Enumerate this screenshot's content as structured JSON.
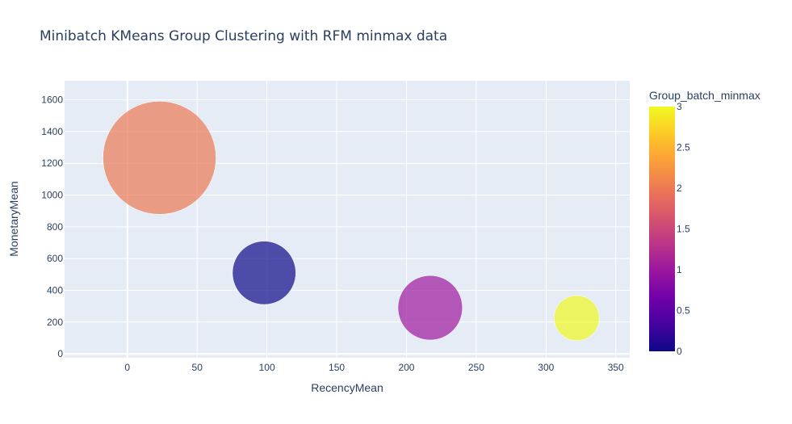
{
  "chart_data": {
    "type": "scatter",
    "title": "Minibatch KMeans Group Clustering with RFM minmax data",
    "xlabel": "RecencyMean",
    "ylabel": "MonetaryMean",
    "xlim": [
      -45,
      360
    ],
    "ylim": [
      -25,
      1720
    ],
    "x_ticks": [
      0,
      50,
      100,
      150,
      200,
      250,
      300,
      350
    ],
    "y_ticks": [
      0,
      200,
      400,
      600,
      800,
      1000,
      1200,
      1400,
      1600
    ],
    "grid": true,
    "background": "#e5ecf6",
    "points": [
      {
        "x": 23,
        "y": 1235,
        "group": 2,
        "size": 1.0,
        "color": "#ed7953"
      },
      {
        "x": 98,
        "y": 510,
        "group": 0,
        "size": 0.56,
        "color": "#0d0887"
      },
      {
        "x": 217,
        "y": 290,
        "group": 1,
        "size": 0.57,
        "color": "#9c179e"
      },
      {
        "x": 322,
        "y": 225,
        "group": 3,
        "size": 0.4,
        "color": "#f0f921"
      }
    ],
    "marker_opacity": 0.7,
    "colorbar": {
      "title": "Group_batch_minmax",
      "range": [
        0,
        3
      ],
      "ticks": [
        "0",
        "0.5",
        "1",
        "1.5",
        "2",
        "2.5",
        "3"
      ],
      "colorscale": [
        "#0d0887",
        "#46039f",
        "#7201a8",
        "#9c179e",
        "#bd3786",
        "#d8576b",
        "#ed7953",
        "#fb9f3a",
        "#fdca26",
        "#f0f921"
      ]
    }
  }
}
